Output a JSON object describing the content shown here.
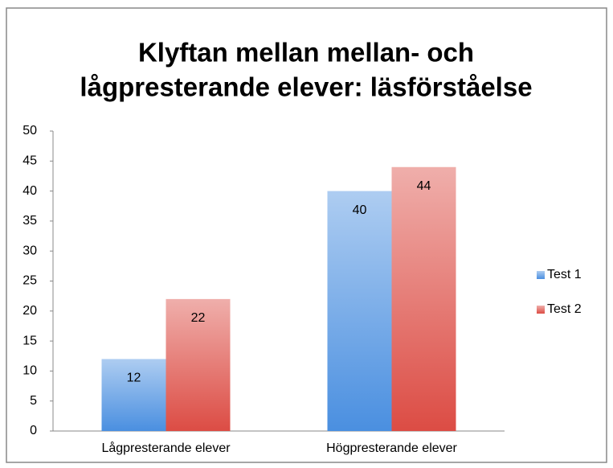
{
  "chart_data": {
    "type": "bar",
    "title": [
      "Klyftan mellan mellan- och",
      "lågpresterande elever: läsförståelse"
    ],
    "categories": [
      "Lågpresterande elever",
      "Högpresterande elever"
    ],
    "series": [
      {
        "name": "Test 1",
        "color": "#4a8fe0",
        "values": [
          12,
          40
        ]
      },
      {
        "name": "Test 2",
        "color": "#dc4c44",
        "values": [
          22,
          44
        ]
      }
    ],
    "ylim": [
      0,
      50
    ],
    "yticks": [
      0,
      5,
      10,
      15,
      20,
      25,
      30,
      35,
      40,
      45,
      50
    ],
    "grid": false,
    "legend": "right"
  }
}
